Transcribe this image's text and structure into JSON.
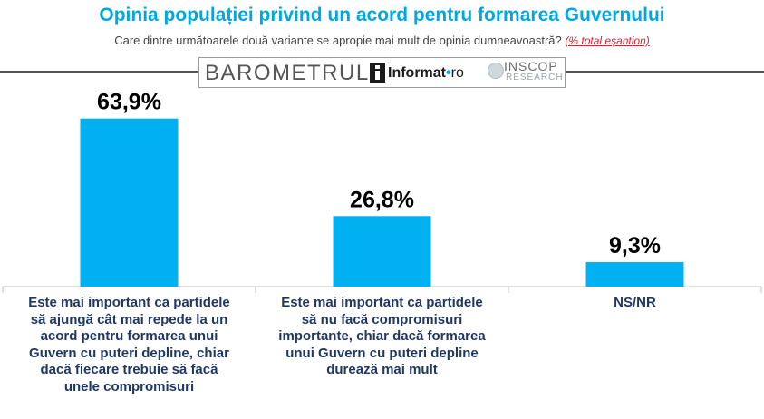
{
  "header": {
    "title": "Opinia populației privind un acord pentru formarea Guvernului",
    "subtitle": "Care dintre următoarele două variante se apropie mai mult de opinia dumneavoastră?",
    "subtitle_note": "(% total eșantion)"
  },
  "branding": {
    "barometrul": "BAROMETRUL",
    "informat_main": "Informat",
    "informat_dot": "•",
    "informat_ro": "ro",
    "inscop": "INSCOP",
    "inscop_sub": "RESEARCH"
  },
  "colors": {
    "title": "#00a8e1",
    "bar": "#00b0f0",
    "label": "#1f3864",
    "note": "#d9232e"
  },
  "chart_data": {
    "type": "bar",
    "title": "Opinia populației privind un acord pentru formarea Guvernului",
    "categories": [
      "Este mai important ca partidele\nsă ajungă cât mai repede la un\nacord pentru formarea unui\nGuvern cu puteri depline, chiar\ndacă fiecare trebuie să facă\nunele compromisuri",
      "Este mai important ca partidele\nsă nu facă compromisuri\nimportante, chiar dacă formarea\nunui Guvern cu puteri depline\ndurează mai mult",
      "NS/NR"
    ],
    "values": [
      63.9,
      26.8,
      9.3
    ],
    "value_labels": [
      "63,9%",
      "26,8%",
      "9,3%"
    ],
    "unit": "%",
    "ylim": [
      0,
      70
    ],
    "grid": false,
    "legend": "none"
  }
}
